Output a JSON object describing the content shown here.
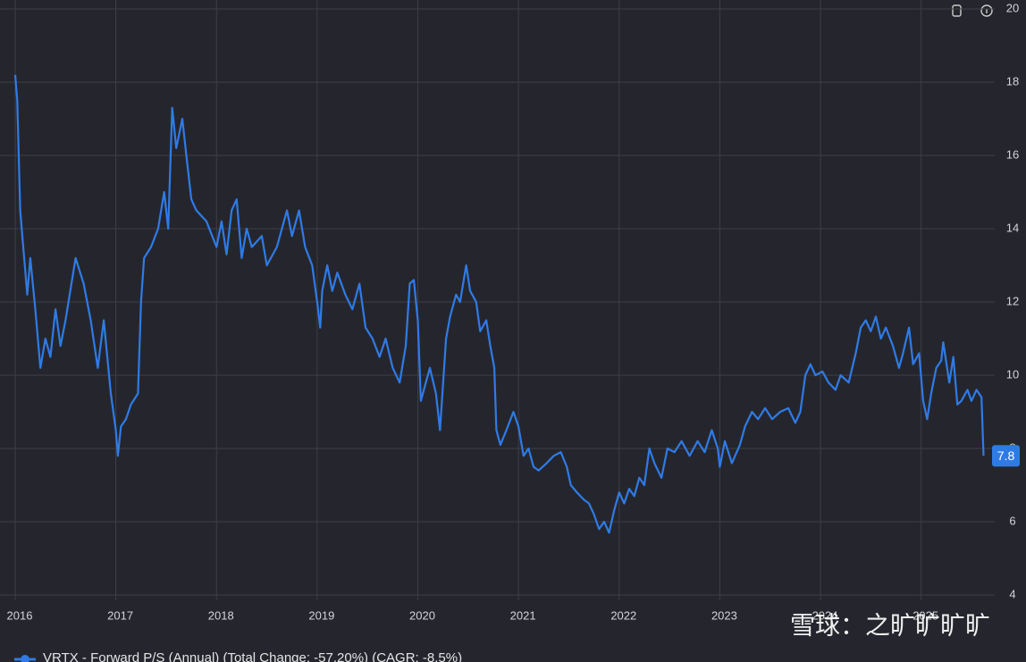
{
  "chart_data": {
    "type": "line",
    "x": [
      2016.0,
      2016.02,
      2016.05,
      2016.08,
      2016.12,
      2016.15,
      2016.2,
      2016.25,
      2016.3,
      2016.35,
      2016.4,
      2016.45,
      2016.5,
      2016.6,
      2016.68,
      2016.75,
      2016.82,
      2016.88,
      2016.95,
      2017.0,
      2017.02,
      2017.05,
      2017.1,
      2017.15,
      2017.22,
      2017.25,
      2017.28,
      2017.35,
      2017.42,
      2017.48,
      2017.52,
      2017.56,
      2017.6,
      2017.66,
      2017.7,
      2017.75,
      2017.8,
      2017.9,
      2018.0,
      2018.05,
      2018.1,
      2018.15,
      2018.2,
      2018.25,
      2018.3,
      2018.35,
      2018.45,
      2018.5,
      2018.6,
      2018.7,
      2018.75,
      2018.82,
      2018.88,
      2018.95,
      2019.0,
      2019.03,
      2019.05,
      2019.1,
      2019.15,
      2019.2,
      2019.28,
      2019.35,
      2019.42,
      2019.48,
      2019.55,
      2019.62,
      2019.68,
      2019.75,
      2019.82,
      2019.88,
      2019.92,
      2019.96,
      2020.0,
      2020.03,
      2020.08,
      2020.12,
      2020.18,
      2020.22,
      2020.28,
      2020.32,
      2020.38,
      2020.42,
      2020.48,
      2020.52,
      2020.58,
      2020.62,
      2020.68,
      2020.72,
      2020.76,
      2020.78,
      2020.82,
      2020.88,
      2020.95,
      2021.0,
      2021.05,
      2021.1,
      2021.15,
      2021.2,
      2021.28,
      2021.35,
      2021.42,
      2021.48,
      2021.52,
      2021.58,
      2021.65,
      2021.7,
      2021.75,
      2021.8,
      2021.85,
      2021.9,
      2021.95,
      2022.0,
      2022.05,
      2022.1,
      2022.15,
      2022.2,
      2022.25,
      2022.3,
      2022.35,
      2022.42,
      2022.48,
      2022.55,
      2022.62,
      2022.7,
      2022.78,
      2022.85,
      2022.92,
      2022.98,
      2023.0,
      2023.05,
      2023.12,
      2023.2,
      2023.25,
      2023.32,
      2023.38,
      2023.45,
      2023.52,
      2023.6,
      2023.68,
      2023.75,
      2023.8,
      2023.85,
      2023.9,
      2023.95,
      2024.02,
      2024.08,
      2024.15,
      2024.2,
      2024.28,
      2024.35,
      2024.4,
      2024.45,
      2024.5,
      2024.55,
      2024.6,
      2024.65,
      2024.72,
      2024.78,
      2024.82,
      2024.88,
      2024.92,
      2024.98,
      2025.02,
      2025.06,
      2025.1,
      2025.15,
      2025.2,
      2025.22,
      2025.28,
      2025.32,
      2025.36,
      2025.4,
      2025.46,
      2025.5,
      2025.55,
      2025.6,
      2025.62
    ],
    "series": [
      {
        "name": "VRTX - Forward P/S (Annual) (Total Change: -57.20%) (CAGR: -8.5%)",
        "color": "#2f7be6",
        "values": [
          18.2,
          17.5,
          14.5,
          13.5,
          12.2,
          13.2,
          11.8,
          10.2,
          11,
          10.5,
          11.8,
          10.8,
          11.5,
          13.2,
          12.5,
          11.5,
          10.2,
          11.5,
          9.5,
          8.5,
          7.8,
          8.6,
          8.8,
          9.2,
          9.5,
          12,
          13.2,
          13.5,
          14,
          15,
          14,
          17.3,
          16.2,
          17,
          16,
          14.8,
          14.5,
          14.2,
          13.5,
          14.2,
          13.3,
          14.5,
          14.8,
          13.2,
          14,
          13.5,
          13.8,
          13.0,
          13.5,
          14.5,
          13.8,
          14.5,
          13.5,
          13,
          12,
          11.3,
          12.3,
          13,
          12.3,
          12.8,
          12.2,
          11.8,
          12.5,
          11.3,
          11.0,
          10.5,
          11,
          10.2,
          9.8,
          10.8,
          12.5,
          12.6,
          11.5,
          9.3,
          9.8,
          10.2,
          9.5,
          8.5,
          11,
          11.6,
          12.2,
          12.0,
          13.0,
          12.3,
          12.0,
          11.2,
          11.5,
          10.8,
          10.2,
          8.5,
          8.1,
          8.5,
          9.0,
          8.6,
          7.8,
          8.0,
          7.5,
          7.4,
          7.6,
          7.8,
          7.9,
          7.5,
          7.0,
          6.8,
          6.6,
          6.5,
          6.2,
          5.8,
          6.0,
          5.7,
          6.3,
          6.8,
          6.5,
          6.9,
          6.7,
          7.2,
          7.0,
          8.0,
          7.6,
          7.2,
          8.0,
          7.9,
          8.2,
          7.8,
          8.2,
          7.9,
          8.5,
          8.0,
          7.5,
          8.2,
          7.6,
          8.1,
          8.6,
          9.0,
          8.8,
          9.1,
          8.8,
          9.0,
          9.1,
          8.7,
          9.0,
          10.0,
          10.3,
          10.0,
          10.1,
          9.8,
          9.6,
          10.0,
          9.8,
          10.6,
          11.3,
          11.5,
          11.2,
          11.6,
          11.0,
          11.3,
          10.8,
          10.2,
          10.6,
          11.3,
          10.3,
          10.6,
          9.3,
          8.8,
          9.5,
          10.2,
          10.4,
          10.9,
          9.8,
          10.5,
          9.2,
          9.3,
          9.6,
          9.3,
          9.6,
          9.4,
          7.8
        ]
      }
    ],
    "end_label": 7.8,
    "xlim": [
      2016,
      2025.66
    ],
    "xticks": [
      2016,
      2017,
      2018,
      2019,
      2020,
      2021,
      2022,
      2023,
      2024,
      2025
    ],
    "ylim": [
      4,
      20
    ],
    "yticks": [
      4,
      6,
      8,
      10,
      12,
      14,
      16,
      18,
      20
    ],
    "grid": true,
    "watermark": "雪球：之旷旷旷旷"
  }
}
